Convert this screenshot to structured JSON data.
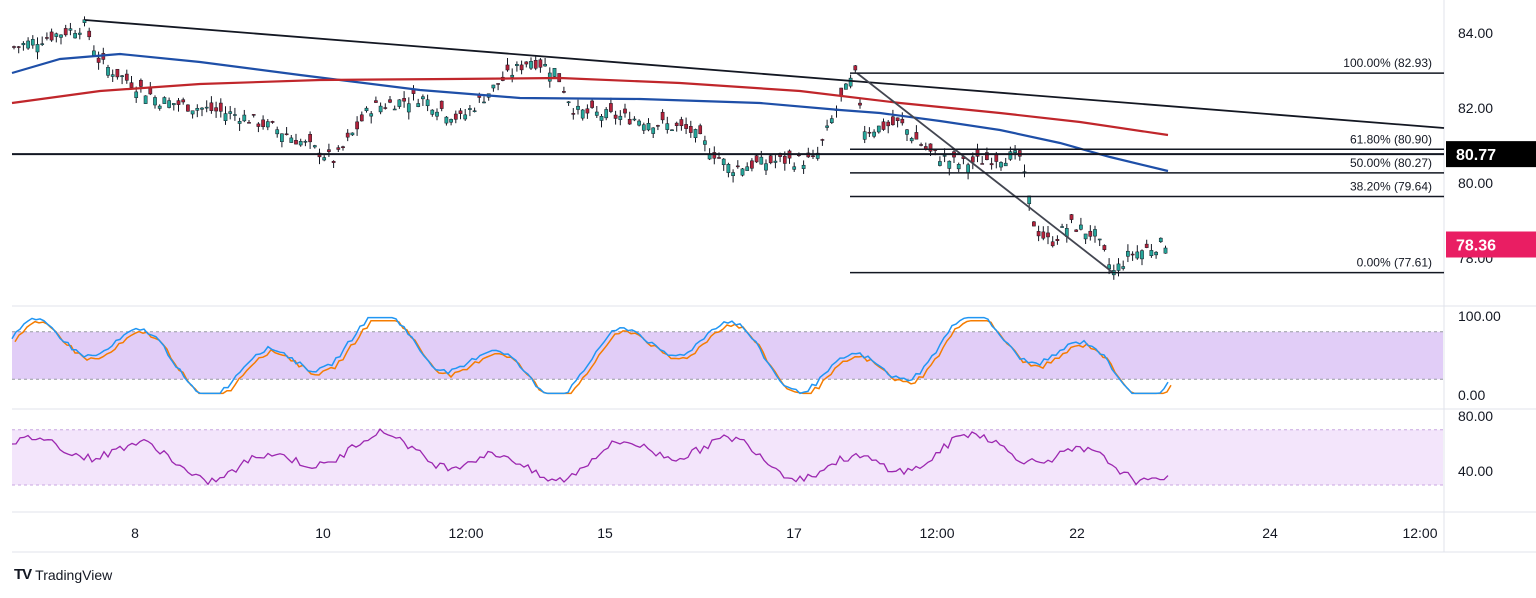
{
  "brand": {
    "logo": "TV",
    "name": "TradingView"
  },
  "price_axis": {
    "labels": [
      "84.00",
      "82.00",
      "80.00",
      "78.00"
    ],
    "horizontal_level_label": "80.77",
    "current_price_label": "78.36"
  },
  "stoch_axis": {
    "labels": [
      "100.00",
      "0.00"
    ]
  },
  "rsi_axis": {
    "labels": [
      "80.00",
      "40.00"
    ]
  },
  "time_axis": {
    "labels": [
      "8",
      "10",
      "12:00",
      "15",
      "17",
      "12:00",
      "22",
      "24",
      "12:00"
    ]
  },
  "fibonacci": {
    "levels": [
      {
        "label": "100.00% (82.93)",
        "value": 82.93
      },
      {
        "label": "61.80% (80.90)",
        "value": 80.9
      },
      {
        "label": "50.00% (80.27)",
        "value": 80.27
      },
      {
        "label": "38.20% (79.64)",
        "value": 79.64
      },
      {
        "label": "0.00% (77.61)",
        "value": 77.61
      }
    ]
  },
  "colors": {
    "bull": "#26a69a",
    "bear": "#b2223a",
    "wick": "#131722",
    "ma_fast": "#1e4fa8",
    "ma_slow": "#c0262b",
    "stoch_k": "#2196f3",
    "stoch_d": "#f57c00",
    "rsi": "#9c27b0",
    "band_stoch": "#e1cdf7",
    "band_rsi": "#f3e5fb",
    "current_price_bg": "#e91e63",
    "level_bg": "#000000"
  },
  "chart_data": {
    "type": "candlestick",
    "price_ylim": [
      76.5,
      84.5
    ],
    "horizontal_level": 80.77,
    "current_price": 78.36,
    "fib_range": {
      "high": 82.93,
      "low": 77.61
    },
    "overbought": 80,
    "oversold": 20,
    "rsi_band": [
      30,
      70
    ]
  }
}
